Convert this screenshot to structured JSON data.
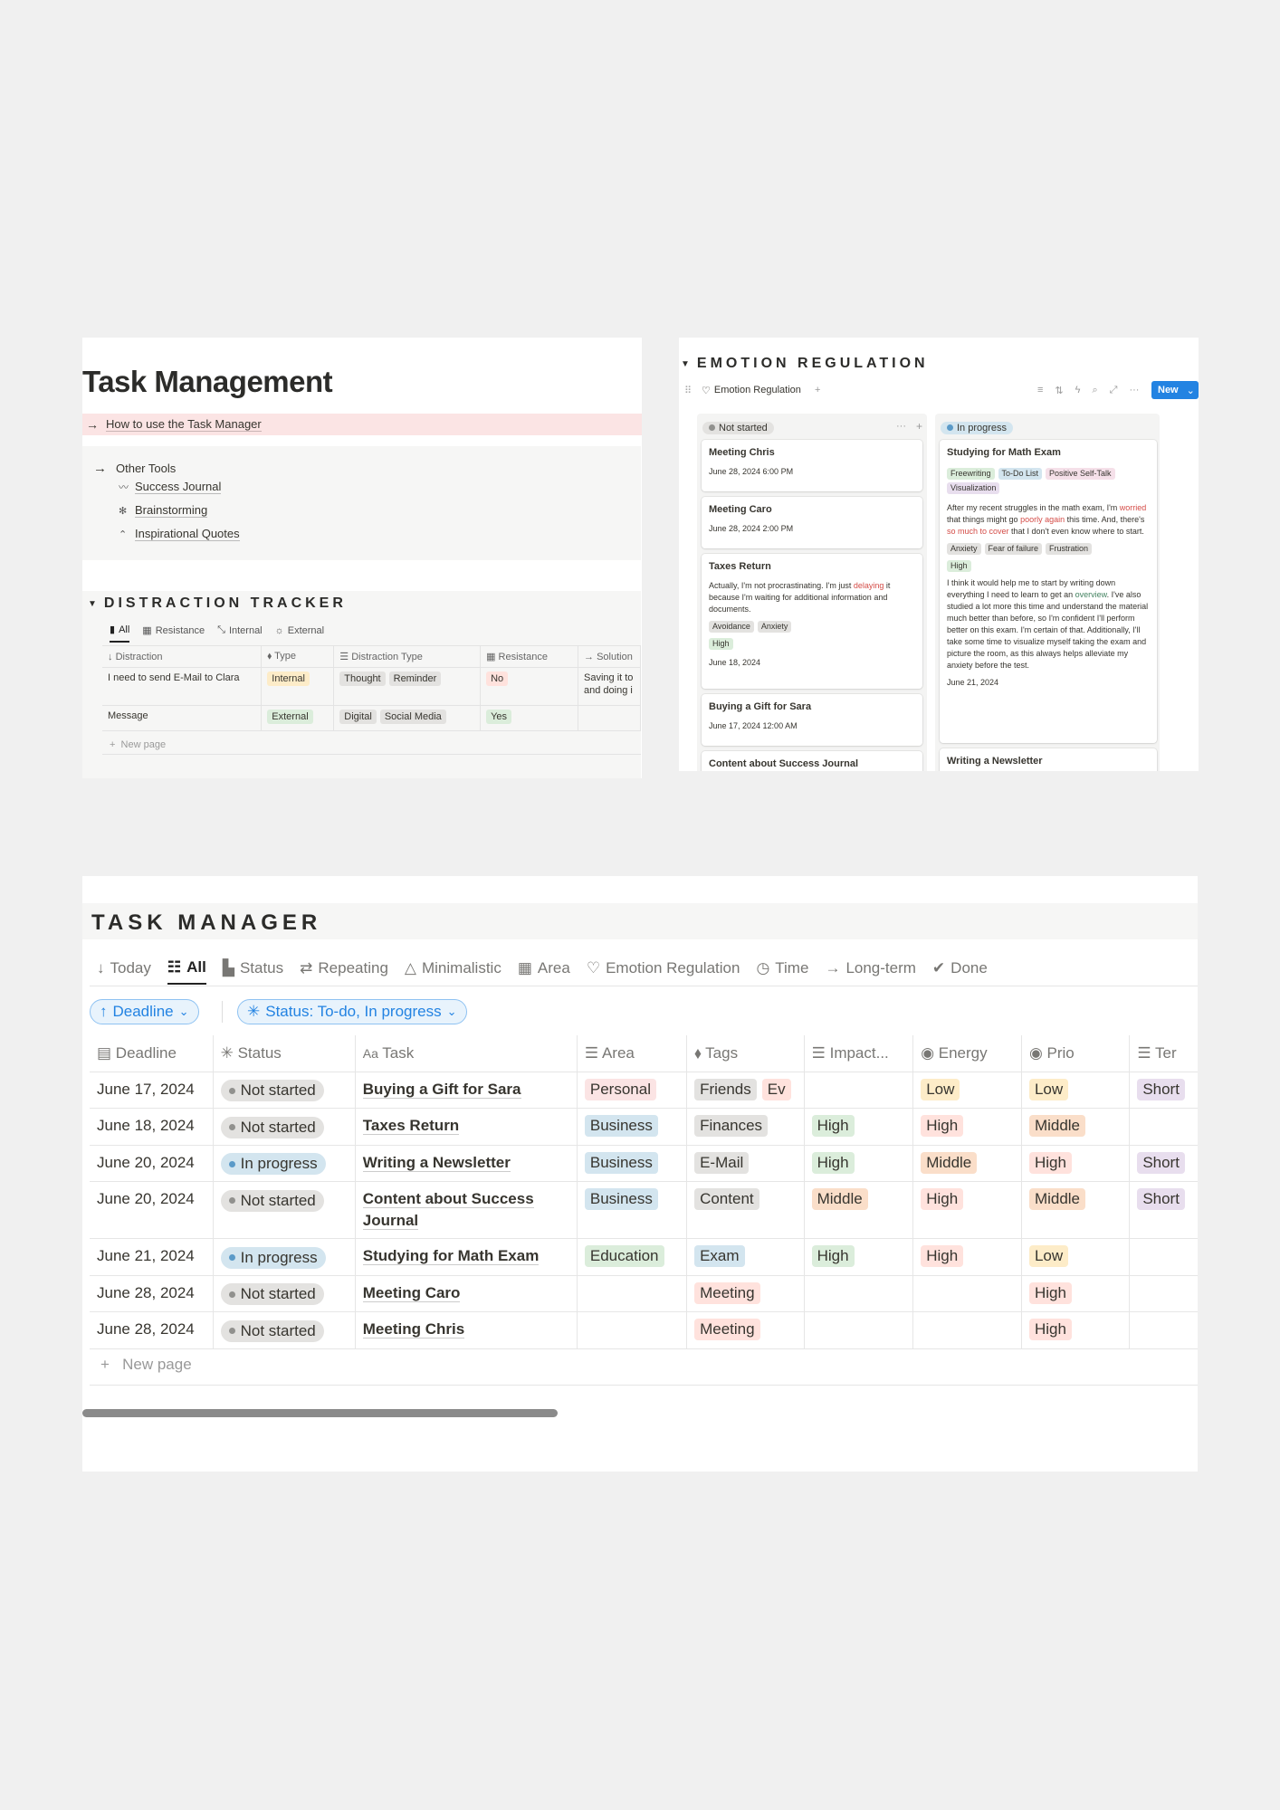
{
  "task_management": {
    "title": "Task Management",
    "howto": "How to use the Task Manager",
    "other_tools": {
      "label": "Other Tools",
      "items": [
        "Success Journal",
        "Brainstorming",
        "Inspirational Quotes"
      ]
    }
  },
  "distraction_tracker": {
    "title": "DISTRACTION TRACKER",
    "views": [
      "All",
      "Resistance",
      "Internal",
      "External"
    ],
    "columns": [
      "Distraction",
      "Type",
      "Distraction Type",
      "Resistance",
      "Solution"
    ],
    "rows": [
      {
        "distraction": "I need to send E-Mail to Clara",
        "type": "Internal",
        "dtypes": [
          "Thought",
          "Reminder"
        ],
        "resistance": "No",
        "solution": "Saving it to and doing i"
      },
      {
        "distraction": "Message",
        "type": "External",
        "dtypes": [
          "Digital",
          "Social Media"
        ],
        "resistance": "Yes",
        "solution": ""
      }
    ],
    "new_page": "New page"
  },
  "emotion_regulation": {
    "title": "EMOTION REGULATION",
    "db_name": "Emotion Regulation",
    "new_button": "New",
    "col_not_started": "Not started",
    "col_in_progress": "In progress",
    "cards_left": [
      {
        "title": "Meeting Chris",
        "date": "June 28, 2024 6:00 PM"
      },
      {
        "title": "Meeting Caro",
        "date": "June 28, 2024 2:00 PM"
      },
      {
        "title": "Taxes Return",
        "text_a": "Actually, I'm not procrastinating. I'm just ",
        "text_red": "delaying",
        "text_b": " it because I'm waiting for additional information and documents.",
        "tags": [
          "Avoidance",
          "Anxiety"
        ],
        "level": "High",
        "date": "June 18, 2024"
      },
      {
        "title": "Buying a Gift for Sara",
        "date": "June 17, 2024 12:00 AM"
      },
      {
        "title": "Content about Success Journal"
      }
    ],
    "card_right": {
      "title": "Studying for Math Exam",
      "tags": [
        "Freewriting",
        "To-Do List",
        "Positive Self-Talk",
        "Visualization"
      ],
      "p1_a": "After my recent struggles in the math exam, I'm ",
      "p1_r1": "worried",
      "p1_b": " that things might go ",
      "p1_r2": "poorly again",
      "p1_c": " this time. And, there's ",
      "p1_r3": "so much to cover",
      "p1_d": " that I don't even know where to start.",
      "feelings": [
        "Anxiety",
        "Fear of failure",
        "Frustration"
      ],
      "level": "High",
      "p2_a": "I think it would help me to start by writing down everything I need to learn to get an ",
      "p2_g": "overview",
      "p2_b": ". I've also studied a lot more this time and understand the material much better than before, so I'm confident I'll perform better on this exam. I'm certain of that. Additionally, I'll take some time to visualize myself taking the exam and picture the room, as this always helps alleviate my anxiety before the test.",
      "date": "June 21, 2024"
    },
    "card_right2": "Writing a Newsletter"
  },
  "task_manager": {
    "title": "TASK MANAGER",
    "views": [
      "Today",
      "All",
      "Status",
      "Repeating",
      "Minimalistic",
      "Area",
      "Emotion Regulation",
      "Time",
      "Long-term",
      "Done"
    ],
    "filters": {
      "deadline": "Deadline",
      "status": "Status: To-do, In progress"
    },
    "columns": [
      "Deadline",
      "Status",
      "Task",
      "Area",
      "Tags",
      "Impact...",
      "Energy",
      "Prio",
      "Ter"
    ],
    "rows": [
      {
        "deadline": "June 17, 2024",
        "status": "Not started",
        "task": "Buying a Gift for Sara",
        "area": "Personal",
        "tags": [
          "Friends",
          "Ev"
        ],
        "impact": "",
        "energy": "Low",
        "prio": "Low",
        "term": "Short"
      },
      {
        "deadline": "June 18, 2024",
        "status": "Not started",
        "task": "Taxes Return",
        "area": "Business",
        "tags": [
          "Finances"
        ],
        "impact": "High",
        "energy": "High",
        "prio": "Middle",
        "term": ""
      },
      {
        "deadline": "June 20, 2024",
        "status": "In progress",
        "task": "Writing a Newsletter",
        "area": "Business",
        "tags": [
          "E-Mail"
        ],
        "impact": "High",
        "energy": "Middle",
        "prio": "High",
        "term": "Short"
      },
      {
        "deadline": "June 20, 2024",
        "status": "Not started",
        "task": "Content about Success Journal",
        "area": "Business",
        "tags": [
          "Content"
        ],
        "impact": "Middle",
        "energy": "High",
        "prio": "Middle",
        "term": "Short"
      },
      {
        "deadline": "June 21, 2024",
        "status": "In progress",
        "task": "Studying for Math Exam",
        "area": "Education",
        "tags": [
          "Exam"
        ],
        "impact": "High",
        "energy": "High",
        "prio": "Low",
        "term": ""
      },
      {
        "deadline": "June 28, 2024",
        "status": "Not started",
        "task": "Meeting Caro",
        "area": "",
        "tags": [
          "Meeting"
        ],
        "impact": "",
        "energy": "",
        "prio": "High",
        "term": ""
      },
      {
        "deadline": "June 28, 2024",
        "status": "Not started",
        "task": "Meeting Chris",
        "area": "",
        "tags": [
          "Meeting"
        ],
        "impact": "",
        "energy": "",
        "prio": "High",
        "term": ""
      }
    ],
    "new_page": "New page"
  },
  "colors": {
    "pink": "#fbe4e4",
    "blue_tag": "#d3e5ef",
    "green_tag": "#dbeddb",
    "yellow_tag": "#fdecc8",
    "red_tag": "#ffe2dd",
    "orange_tag": "#fadec9",
    "purple_tag": "#e8deee",
    "gray_tag": "#e3e2e0",
    "accent": "#2383e2"
  }
}
